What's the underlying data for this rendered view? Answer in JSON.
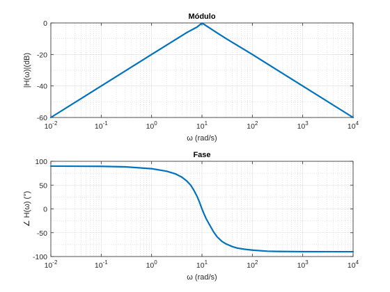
{
  "chart_data": [
    {
      "type": "line",
      "title": "Módulo",
      "xlabel": "ω (rad/s)",
      "ylabel": "|H(ω)|(dB)",
      "xscale": "log",
      "xlim": [
        0.01,
        10000
      ],
      "ylim": [
        -60,
        0
      ],
      "xticks": [
        0.01,
        0.1,
        1,
        10,
        100,
        1000,
        10000
      ],
      "xtick_labels": [
        {
          "base": "10",
          "exp": "-2"
        },
        {
          "base": "10",
          "exp": "-1"
        },
        {
          "base": "10",
          "exp": "0"
        },
        {
          "base": "10",
          "exp": "1"
        },
        {
          "base": "10",
          "exp": "2"
        },
        {
          "base": "10",
          "exp": "3"
        },
        {
          "base": "10",
          "exp": "4"
        }
      ],
      "yticks": [
        0,
        -20,
        -40,
        -60
      ],
      "ytick_labels": [
        "0",
        "-20",
        "-40",
        "-60"
      ],
      "grid": true,
      "minor_grid": true,
      "color": "#0072BD",
      "series": [
        {
          "x": [
            0.01,
            0.1,
            1,
            3,
            5,
            8,
            10,
            12,
            20,
            30,
            100,
            1000,
            10000
          ],
          "y": [
            -60,
            -40,
            -20,
            -10.5,
            -6.1,
            -2.6,
            -0.1,
            -1.7,
            -6.3,
            -9.9,
            -20,
            -40,
            -60
          ]
        }
      ]
    },
    {
      "type": "line",
      "title": "Fase",
      "xlabel": "ω (rad/s)",
      "ylabel": "∠ H(ω) (°)",
      "xscale": "log",
      "xlim": [
        0.01,
        10000
      ],
      "ylim": [
        -100,
        100
      ],
      "xticks": [
        0.01,
        0.1,
        1,
        10,
        100,
        1000,
        10000
      ],
      "xtick_labels": [
        {
          "base": "10",
          "exp": "-2"
        },
        {
          "base": "10",
          "exp": "-1"
        },
        {
          "base": "10",
          "exp": "0"
        },
        {
          "base": "10",
          "exp": "1"
        },
        {
          "base": "10",
          "exp": "2"
        },
        {
          "base": "10",
          "exp": "3"
        },
        {
          "base": "10",
          "exp": "4"
        }
      ],
      "yticks": [
        100,
        50,
        0,
        -50,
        -100
      ],
      "ytick_labels": [
        "100",
        "50",
        "0",
        "-50",
        "-100"
      ],
      "grid": true,
      "minor_grid": true,
      "color": "#0072BD",
      "series": [
        {
          "x": [
            0.01,
            0.1,
            0.3,
            1,
            2,
            3,
            4,
            5,
            6,
            7,
            8,
            9,
            10,
            11,
            12,
            14,
            17,
            20,
            25,
            30,
            40,
            50,
            70,
            100,
            200,
            300,
            1000,
            10000
          ],
          "y": [
            89.9,
            89.4,
            88.3,
            84.5,
            79.1,
            73.4,
            66.6,
            58.6,
            49.7,
            38.0,
            26.3,
            13.3,
            0,
            -10.5,
            -19.7,
            -32.5,
            -48.2,
            -58.6,
            -68.4,
            -73.4,
            -79.1,
            -82.2,
            -84.7,
            -86.5,
            -88.8,
            -89.2,
            -89.7,
            -89.9
          ]
        }
      ]
    }
  ]
}
